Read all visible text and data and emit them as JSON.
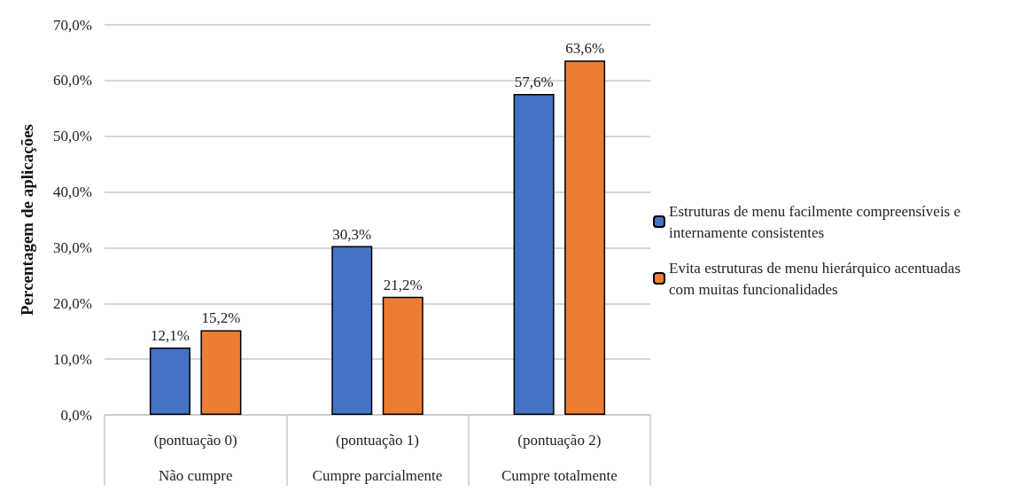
{
  "chart_data": {
    "type": "bar",
    "ylabel": "Percentagem de aplicações",
    "categories": [
      "(pontuação 0)\nNão cumpre",
      "(pontuação 1)\nCumpre parcialmente",
      "(pontuação 2)\nCumpre totalmente"
    ],
    "series": [
      {
        "name": "Estruturas de menu facilmente compreensíveis e internamente consistentes",
        "color": "#4472c4",
        "values": [
          12.1,
          30.3,
          57.6
        ],
        "value_labels": [
          "12,1%",
          "30,3%",
          "57,6%"
        ]
      },
      {
        "name": "Evita estruturas de menu hierárquico acentuadas com muitas funcionalidades",
        "color": "#ed7d31",
        "values": [
          15.2,
          21.2,
          63.6
        ],
        "value_labels": [
          "15,2%",
          "21,2%",
          "63,6%"
        ]
      }
    ],
    "ylim": [
      0,
      70
    ],
    "yticks": [
      {
        "value": 0,
        "label": "0,0%"
      },
      {
        "value": 10,
        "label": "10,0%"
      },
      {
        "value": 20,
        "label": "20,0%"
      },
      {
        "value": 30,
        "label": "30,0%"
      },
      {
        "value": 40,
        "label": "40,0%"
      },
      {
        "value": 50,
        "label": "50,0%"
      },
      {
        "value": 60,
        "label": "60,0%"
      },
      {
        "value": 70,
        "label": "70,0%"
      }
    ],
    "grid": "y",
    "legend": "right"
  }
}
